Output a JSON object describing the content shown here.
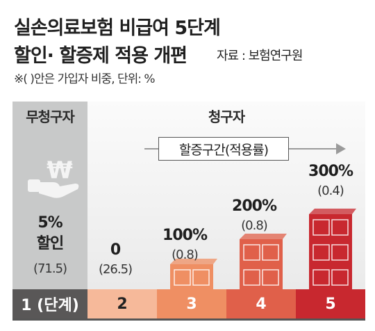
{
  "header": {
    "title_line1": "실손의료보험 비급여 5단계",
    "title_line2": "할인· 할증제 적용 개편",
    "source": "자료 : 보험연구원",
    "note": "※( )안은 가입자 비중, 단위: %"
  },
  "panels": {
    "non_claimant": "무청구자",
    "claimant": "청구자",
    "surcharge_range": "할증구간(적용률)"
  },
  "chart_data": {
    "type": "bar",
    "categories": [
      "1 (단계)",
      "2",
      "3",
      "4",
      "5"
    ],
    "adjustment_labels": [
      "5%\n할인",
      "0",
      "100%",
      "200%",
      "300%"
    ],
    "adjustment_percent": [
      -5,
      0,
      100,
      200,
      300
    ],
    "subscriber_share_labels": [
      "(71.5)",
      "(26.5)",
      "(0.8)",
      "(0.8)",
      "(0.4)"
    ],
    "subscriber_share": [
      71.5,
      26.5,
      0.8,
      0.8,
      0.4
    ],
    "step_colors": [
      "#595757",
      "#f6b99a",
      "#ef8f63",
      "#e0604a",
      "#c8282f"
    ]
  }
}
